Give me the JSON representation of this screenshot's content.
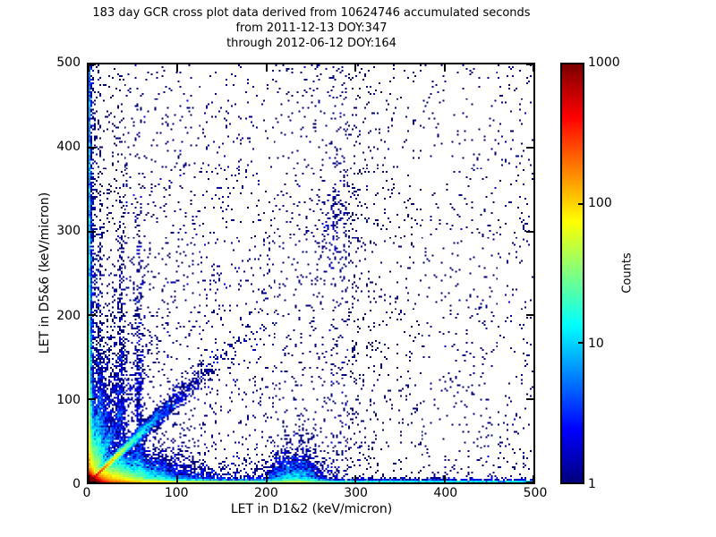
{
  "window": {
    "background": "#ffffff"
  },
  "title": {
    "line1": "183 day GCR cross plot data derived from 10624746 accumulated seconds",
    "line2": "from 2011-12-13 DOY:347",
    "line3": "through 2012-06-12 DOY:164"
  },
  "chart_data": {
    "type": "heatmap",
    "title": "183 day GCR cross plot data derived from 10624746 accumulated seconds from 2011-12-13 DOY:347 through 2012-06-12 DOY:164",
    "xlabel": "LET in D1&2 (keV/micron)",
    "ylabel": "LET in D5&6 (keV/micron)",
    "xlim": [
      0,
      500
    ],
    "ylim": [
      0,
      500
    ],
    "xticks": [
      0,
      100,
      200,
      300,
      400,
      500
    ],
    "yticks": [
      0,
      100,
      200,
      300,
      400,
      500
    ],
    "grid": false,
    "background": "#ffffff",
    "axis_color": "#000000",
    "colorbar": {
      "label": "Counts",
      "scale": "log10",
      "min": 1,
      "max": 1000,
      "ticks": [
        1,
        10,
        100,
        1000
      ],
      "colormap": "jet",
      "color_stops": [
        "#000080",
        "#0000ff",
        "#00d4ff",
        "#7dff7a",
        "#ffe500",
        "#ff5e00",
        "#800000"
      ]
    },
    "features": [
      "very dense red/orange hotspot of counts >1000 at the origin (LET < ~15 in both detectors)",
      "warm (orange/yellow) ribbon hugging the x-axis out to LET ~25, fading to green/cyan then blue along the full bottom edge to 500",
      "dense blue vertical band hugging the y-axis up to 500",
      "bright cyan/green correlation track along y = x from the origin out to ~50, continuing as a blue ridge to ~100",
      "fainter diagonal streaks fanning above the main track, and vertical streaks near x = 12, 36, 57",
      "dense blue wedge of scatter below the diagonal for x < ~150",
      "secondary blue clump near x = 230 along the bottom and a loose vertical scatter column near x = 280-320",
      "sparse single-count (dark navy) points scattered over the whole 0-500 x 0-500 field"
    ],
    "generation": {
      "seed": 20120612,
      "bins_x": 250,
      "bins_y": 235,
      "log_max": 3,
      "components": [
        {
          "name": "origin-hotspot",
          "n": 60000,
          "x": {
            "d": "exp",
            "m": 3.2
          },
          "y": {
            "d": "exp",
            "m": 2.4
          }
        },
        {
          "name": "bottom-band",
          "n": 6500,
          "x": {
            "d": "exp",
            "m": 140
          },
          "y": {
            "d": "exp",
            "m": 1.3
          }
        },
        {
          "name": "bottom-band-far",
          "n": 2200,
          "x": {
            "d": "uni",
            "a": 0,
            "b": 500
          },
          "y": {
            "d": "exp",
            "m": 1.1
          }
        },
        {
          "name": "left-band",
          "n": 5200,
          "x": {
            "d": "exp",
            "m": 1.3
          },
          "y": {
            "d": "exp",
            "m": 130
          }
        },
        {
          "name": "left-band-far",
          "n": 1100,
          "x": {
            "d": "exp",
            "m": 1.1
          },
          "y": {
            "d": "uni",
            "a": 0,
            "b": 500
          }
        },
        {
          "name": "diagonal-track",
          "n": 8000,
          "slope": 1.0,
          "t": {
            "d": "exp",
            "m": 28
          },
          "jitter": 0.05
        },
        {
          "name": "fan-slope-2",
          "n": 1000,
          "slope": 2.3,
          "t": {
            "d": "exp",
            "m": 20
          },
          "jitter": 0.09
        },
        {
          "name": "fan-slope-4",
          "n": 800,
          "slope": 4.0,
          "t": {
            "d": "exp",
            "m": 14
          },
          "jitter": 0.11
        },
        {
          "name": "fan-slope-7",
          "n": 600,
          "slope": 7.0,
          "t": {
            "d": "exp",
            "m": 10
          },
          "jitter": 0.13
        },
        {
          "name": "wedge-below-diagonal",
          "n": 20000,
          "x": {
            "d": "exp",
            "m": 26
          },
          "y": {
            "d": "exp",
            "m": 10
          },
          "constraint": "y<x"
        },
        {
          "name": "wedge-above-diagonal",
          "n": 7000,
          "x": {
            "d": "exp",
            "m": 10
          },
          "y": {
            "d": "exp",
            "m": 26
          },
          "constraint": "y>x"
        },
        {
          "name": "vertical-streak-12",
          "n": 650,
          "x": {
            "d": "norm",
            "mu": 12,
            "s": 2
          },
          "y": {
            "d": "exp",
            "m": 110
          }
        },
        {
          "name": "vertical-streak-36",
          "n": 600,
          "x": {
            "d": "norm",
            "mu": 36,
            "s": 2.5
          },
          "y": {
            "d": "exp",
            "m": 110
          }
        },
        {
          "name": "vertical-streak-57",
          "n": 550,
          "x": {
            "d": "norm",
            "mu": 57,
            "s": 2.5
          },
          "y": {
            "d": "exp",
            "m": 100
          }
        },
        {
          "name": "cluster-x230",
          "n": 2200,
          "x": {
            "d": "norm",
            "mu": 232,
            "s": 16
          },
          "y": {
            "d": "exp",
            "m": 11
          }
        },
        {
          "name": "loose-vertical-290",
          "n": 420,
          "x": {
            "d": "norm",
            "mu": 292,
            "s": 22
          },
          "y": {
            "d": "pow",
            "max": 500,
            "p": 1.2
          }
        },
        {
          "name": "cluster-280-310",
          "n": 130,
          "x": {
            "d": "norm",
            "mu": 279,
            "s": 12
          },
          "y": {
            "d": "norm",
            "mu": 312,
            "s": 26
          }
        },
        {
          "name": "sparse-field",
          "n": 2400,
          "x": {
            "d": "pow",
            "max": 500,
            "p": 1.6
          },
          "y": {
            "d": "pow",
            "max": 500,
            "p": 1.3
          }
        },
        {
          "name": "sparse-uniform",
          "n": 750,
          "x": {
            "d": "uni",
            "a": 0,
            "b": 500
          },
          "y": {
            "d": "uni",
            "a": 0,
            "b": 500
          }
        }
      ]
    }
  }
}
